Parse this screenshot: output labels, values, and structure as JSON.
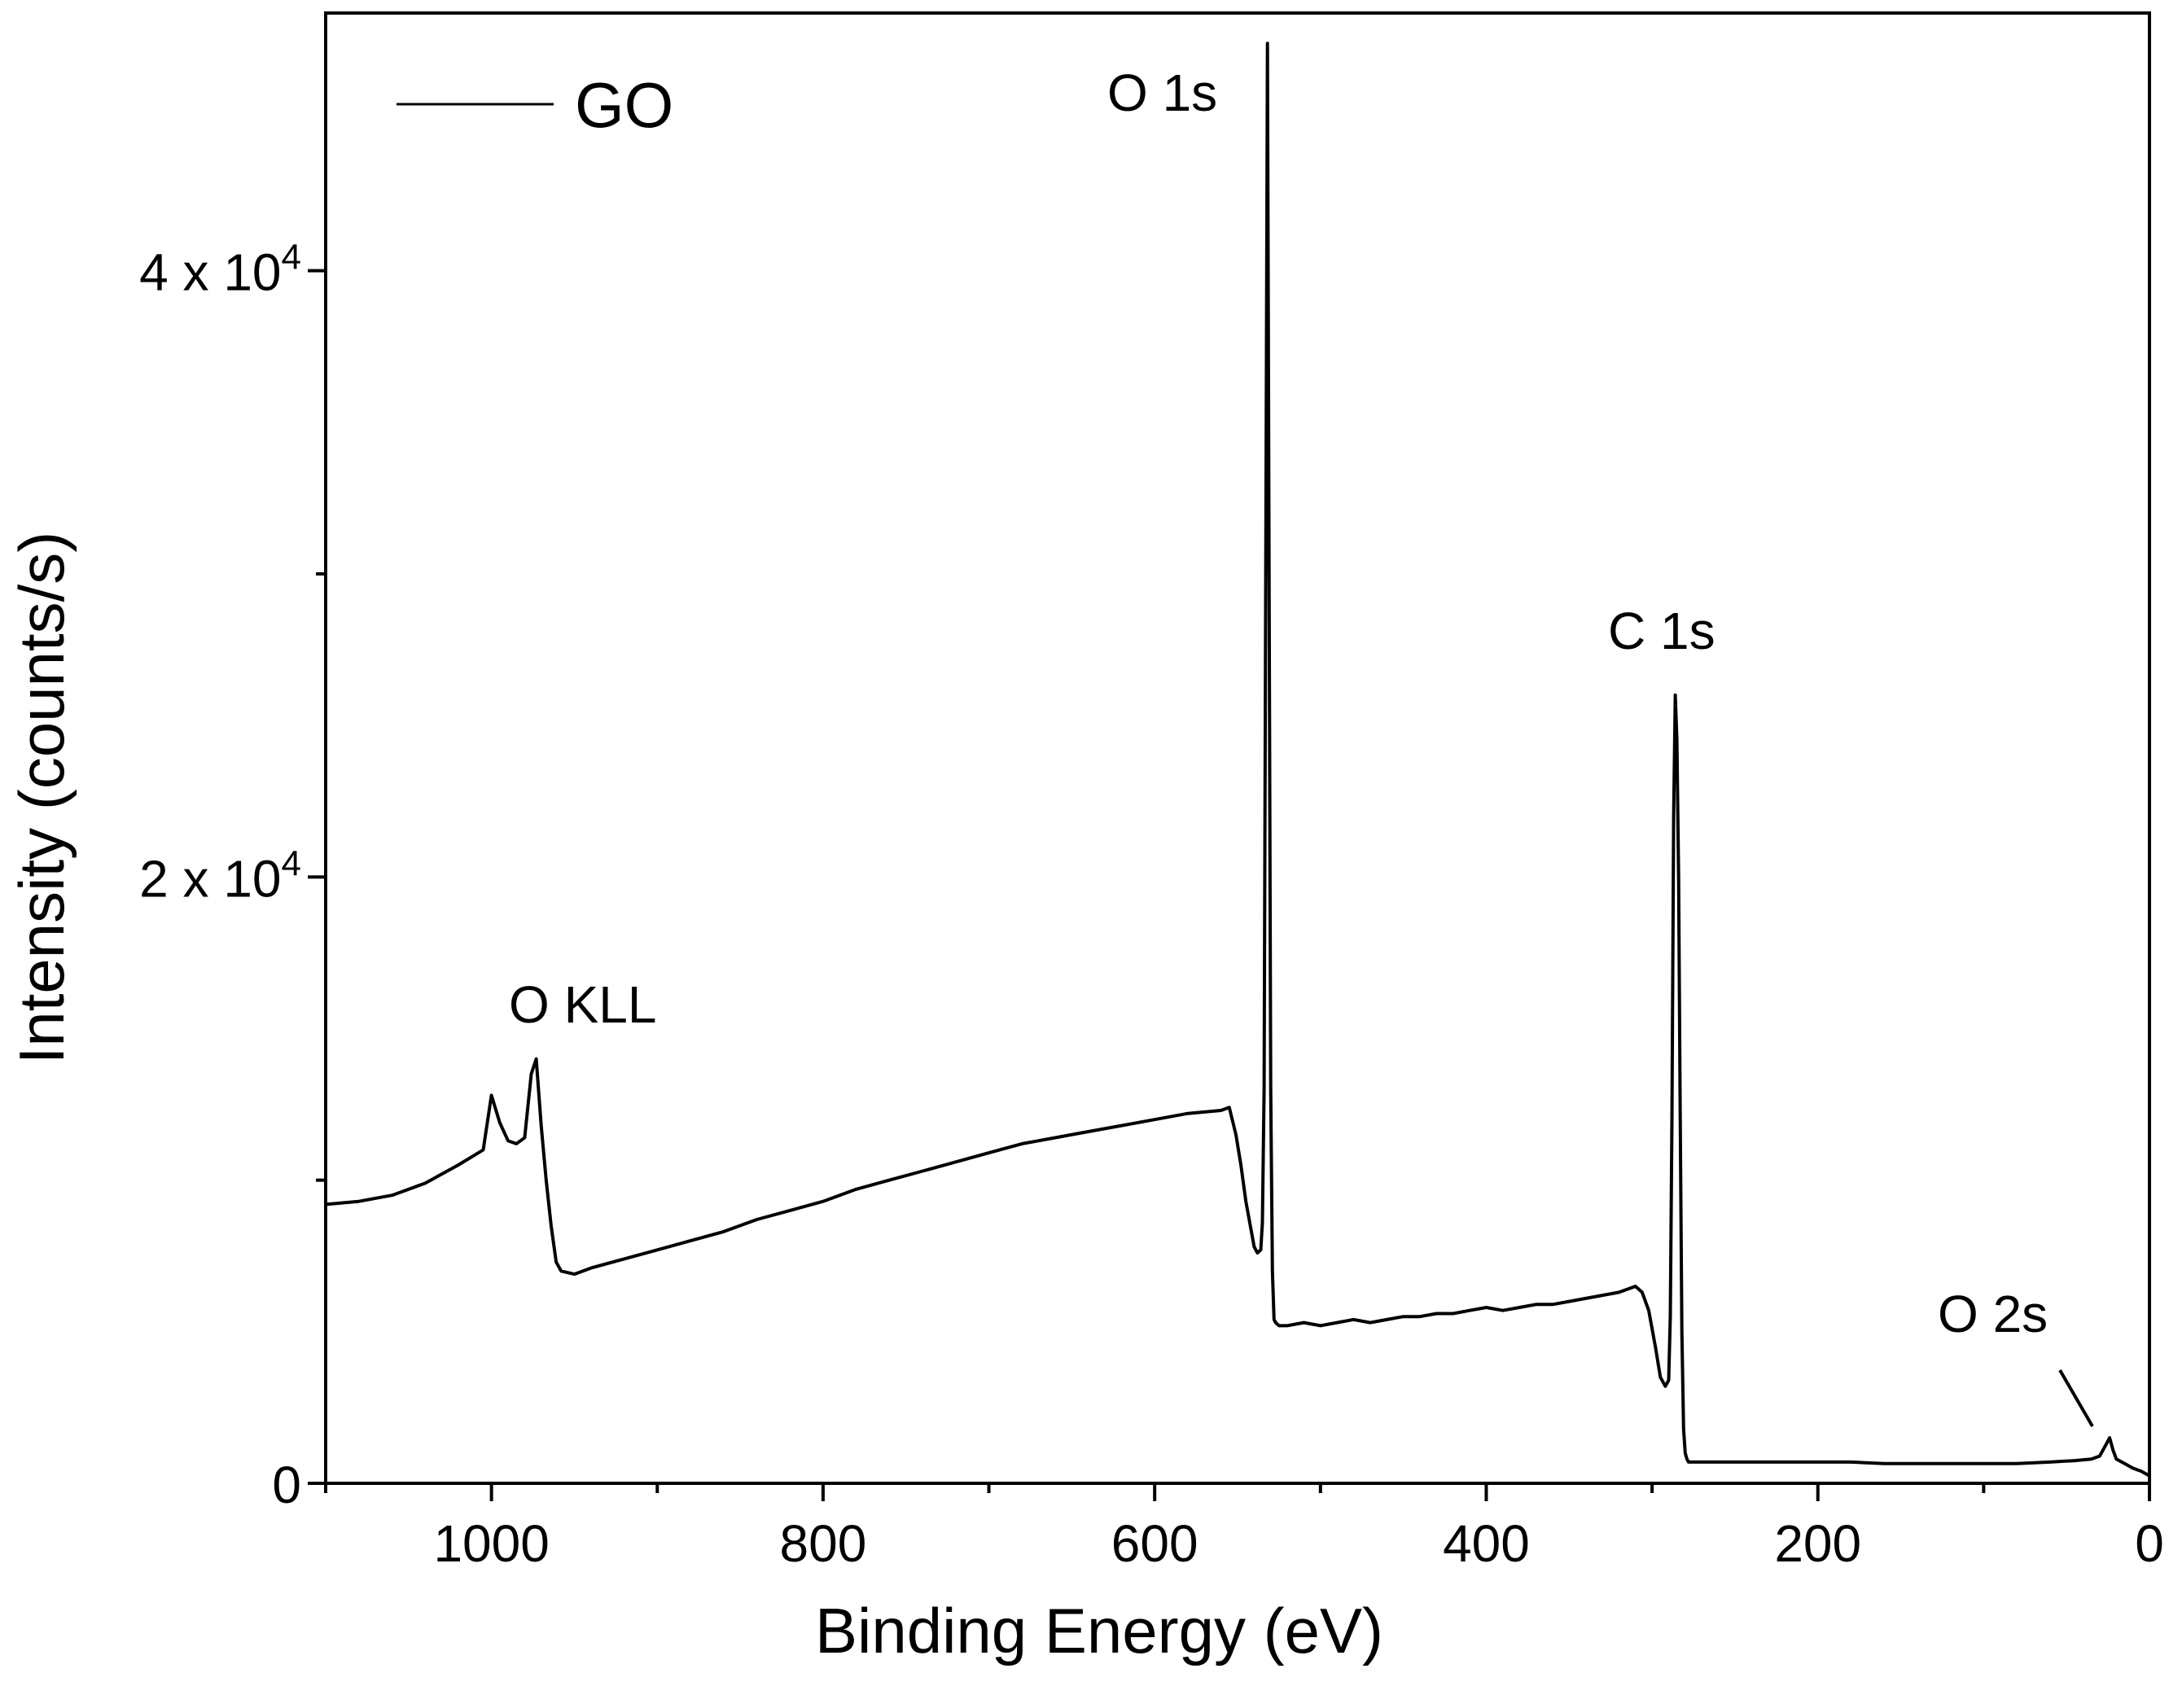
{
  "chart_data": {
    "type": "line",
    "title": "",
    "xlabel": "Binding Energy (eV)",
    "ylabel": "Intensity (counts/s)",
    "xlim": [
      1100,
      0
    ],
    "ylim": [
      0,
      48500
    ],
    "x_reversed": true,
    "x_ticks": [
      {
        "value": 1000,
        "label": "1000"
      },
      {
        "value": 800,
        "label": "800"
      },
      {
        "value": 600,
        "label": "600"
      },
      {
        "value": 400,
        "label": "400"
      },
      {
        "value": 200,
        "label": "200"
      },
      {
        "value": 0,
        "label": "0"
      }
    ],
    "x_minor_ticks": [
      1100,
      900,
      700,
      500,
      300,
      100
    ],
    "y_ticks": [
      {
        "value": 0,
        "label": "0",
        "base": "",
        "exp": ""
      },
      {
        "value": 20000,
        "label": "",
        "base": "2 x 10",
        "exp": "4"
      },
      {
        "value": 40000,
        "label": "",
        "base": "4 x 10",
        "exp": "4"
      }
    ],
    "y_minor_ticks": [
      10000,
      30000
    ],
    "legend": {
      "position": "top-left",
      "entries": [
        "GO"
      ]
    },
    "series": [
      {
        "name": "GO",
        "color": "#000000",
        "x": [
          1100,
          1080,
          1060,
          1040,
          1020,
          1005,
          1000,
          995,
          990,
          985,
          980,
          976,
          973,
          970,
          967,
          964,
          961,
          958,
          950,
          940,
          920,
          900,
          880,
          860,
          840,
          820,
          800,
          780,
          760,
          740,
          720,
          700,
          680,
          660,
          640,
          620,
          600,
          580,
          560,
          555,
          551,
          548,
          545,
          542,
          540,
          538,
          536,
          535,
          534,
          533,
          532,
          531,
          530,
          529,
          528,
          527,
          525,
          520,
          510,
          500,
          490,
          480,
          470,
          460,
          450,
          440,
          430,
          420,
          410,
          400,
          390,
          380,
          370,
          360,
          350,
          340,
          330,
          320,
          310,
          306,
          302,
          298,
          295,
          292,
          290,
          289,
          288,
          287,
          286,
          285,
          284,
          283,
          282,
          281,
          280,
          279,
          278,
          276,
          270,
          260,
          240,
          220,
          200,
          180,
          160,
          140,
          120,
          100,
          80,
          60,
          45,
          35,
          30,
          26,
          24,
          22,
          20,
          15,
          10,
          5,
          0
        ],
        "y": [
          9200,
          9300,
          9500,
          9900,
          10500,
          11000,
          12800,
          11900,
          11300,
          11200,
          11400,
          13500,
          14000,
          11800,
          10000,
          8500,
          7300,
          7000,
          6900,
          7100,
          7400,
          7700,
          8000,
          8300,
          8700,
          9000,
          9300,
          9700,
          10000,
          10300,
          10600,
          10900,
          11200,
          11400,
          11600,
          11800,
          12000,
          12200,
          12300,
          12400,
          11500,
          10500,
          9300,
          8400,
          7800,
          7600,
          7700,
          8600,
          13000,
          30000,
          47500,
          30000,
          13000,
          7000,
          5400,
          5300,
          5200,
          5200,
          5300,
          5200,
          5300,
          5400,
          5300,
          5400,
          5500,
          5500,
          5600,
          5600,
          5700,
          5800,
          5700,
          5800,
          5900,
          5900,
          6000,
          6100,
          6200,
          6300,
          6500,
          6300,
          5700,
          4500,
          3500,
          3200,
          3400,
          5500,
          12000,
          22000,
          26000,
          24500,
          20000,
          12000,
          5000,
          1800,
          1000,
          800,
          700,
          700,
          700,
          700,
          700,
          700,
          700,
          700,
          650,
          650,
          650,
          650,
          650,
          700,
          750,
          800,
          900,
          1300,
          1500,
          1100,
          800,
          650,
          500,
          400,
          250
        ]
      }
    ],
    "annotations": [
      {
        "text": "O 1s",
        "x": 532,
        "y": 47500
      },
      {
        "text": "C 1s",
        "x": 285,
        "y": 26000
      },
      {
        "text": "O KLL",
        "x": 976,
        "y": 14000
      },
      {
        "text": "O 2s",
        "x": 24,
        "y": 1500
      }
    ]
  }
}
